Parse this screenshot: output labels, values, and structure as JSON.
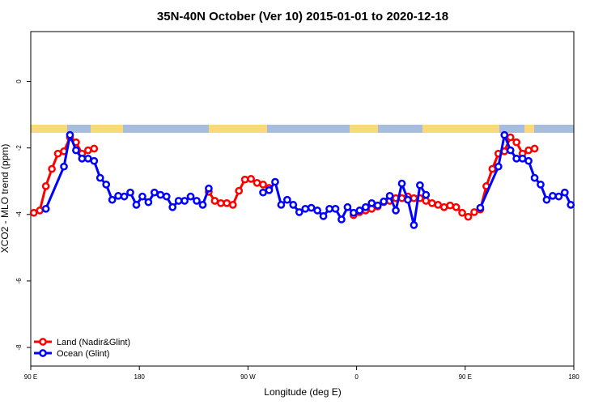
{
  "chart_data": {
    "type": "line",
    "title": "35N-40N October (Ver 10)   2015-01-01 to 2020-12-18",
    "x_label": "Longitude (deg E)",
    "y_label": "XCO2 - MLO trend (ppm)",
    "xlim": [
      90,
      540
    ],
    "ylim": [
      -8.56,
      1.5
    ],
    "xticks": [
      {
        "value": 90,
        "label": "90 E"
      },
      {
        "value": 180,
        "label": "180"
      },
      {
        "value": 270,
        "label": "90 W"
      },
      {
        "value": 360,
        "label": "0"
      },
      {
        "value": 450,
        "label": "90 E"
      },
      {
        "value": 540,
        "label": "180"
      }
    ],
    "yticks": [
      0,
      -2,
      -4,
      -6,
      -8
    ],
    "legend": "bottom-left",
    "series": [
      {
        "name": "Land (Nadir&Glint)",
        "color": "#ff0000",
        "x": [
          92.5,
          97.5,
          102.5,
          107.5,
          112.5,
          117.5,
          122.5,
          127.5,
          132.5,
          137.5,
          142.5,
          null,
          237.5,
          242.5,
          247.5,
          252.5,
          257.5,
          262.5,
          267.5,
          272.5,
          277.5,
          282.5,
          287.5,
          null,
          357.5,
          362.5,
          367.5,
          372.5,
          377.5,
          382.5,
          387.5,
          392.5,
          397.5,
          402.5,
          407.5,
          412.5,
          417.5,
          422.5,
          427.5,
          432.5,
          437.5,
          442.5,
          447.5,
          452.5,
          457.5,
          462.5,
          467.5,
          472.5,
          477.5,
          482.5,
          487.5,
          492.5,
          497.5,
          502.5,
          507.5
        ],
        "values": [
          -3.95,
          -3.88,
          -3.15,
          -2.63,
          -2.17,
          -2.1,
          -1.68,
          -1.83,
          -2.17,
          -2.07,
          -2.02,
          null,
          -3.32,
          -3.59,
          -3.66,
          -3.66,
          -3.71,
          -3.29,
          -2.95,
          -2.93,
          -3.05,
          -3.1,
          -3.2,
          null,
          -4.02,
          -3.93,
          -3.88,
          -3.83,
          -3.76,
          -3.63,
          -3.59,
          -3.51,
          -3.51,
          -3.46,
          -3.51,
          -3.51,
          -3.59,
          -3.66,
          -3.71,
          -3.78,
          -3.73,
          -3.78,
          -3.95,
          -4.07,
          -3.93,
          -3.85,
          -3.15,
          -2.63,
          -2.17,
          -2.1,
          -1.68,
          -1.83,
          -2.17,
          -2.07,
          -2.02
        ]
      },
      {
        "name": "Ocean (Glint)",
        "color": "#0000ff",
        "x": [
          102.5,
          117.5,
          122.5,
          127.5,
          132.5,
          137.5,
          142.5,
          147.5,
          152.5,
          157.5,
          162.5,
          167.5,
          172.5,
          177.5,
          182.5,
          187.5,
          192.5,
          197.5,
          202.5,
          207.5,
          212.5,
          217.5,
          222.5,
          227.5,
          232.5,
          237.5,
          null,
          282.5,
          287.5,
          292.5,
          297.5,
          302.5,
          307.5,
          312.5,
          317.5,
          322.5,
          327.5,
          332.5,
          337.5,
          342.5,
          347.5,
          352.5,
          357.5,
          362.5,
          367.5,
          372.5,
          377.5,
          382.5,
          387.5,
          392.5,
          397.5,
          402.5,
          407.5,
          412.5,
          417.5,
          null,
          462.5,
          477.5,
          482.5,
          487.5,
          492.5,
          497.5,
          502.5,
          507.5,
          512.5,
          517.5,
          522.5,
          527.5,
          532.5,
          537.5
        ],
        "values": [
          -3.83,
          -2.56,
          -1.61,
          -2.07,
          -2.32,
          -2.32,
          -2.39,
          -2.9,
          -3.1,
          -3.56,
          -3.44,
          -3.46,
          -3.34,
          -3.71,
          -3.46,
          -3.63,
          -3.34,
          -3.41,
          -3.46,
          -3.78,
          -3.59,
          -3.59,
          -3.46,
          -3.59,
          -3.71,
          -3.22,
          null,
          -3.34,
          -3.27,
          -3.02,
          -3.71,
          -3.56,
          -3.71,
          -3.93,
          -3.83,
          -3.8,
          -3.88,
          -4.05,
          -3.83,
          -3.83,
          -4.15,
          -3.78,
          -3.95,
          -3.88,
          -3.78,
          -3.66,
          -3.73,
          -3.61,
          -3.44,
          -3.88,
          -3.07,
          -3.56,
          -4.32,
          -3.12,
          -3.41,
          null,
          -3.8,
          -2.56,
          -1.61,
          -2.07,
          -2.32,
          -2.32,
          -2.39,
          -2.9,
          -3.1,
          -3.56,
          -3.44,
          -3.46,
          -3.34,
          -3.71
        ]
      }
    ]
  }
}
